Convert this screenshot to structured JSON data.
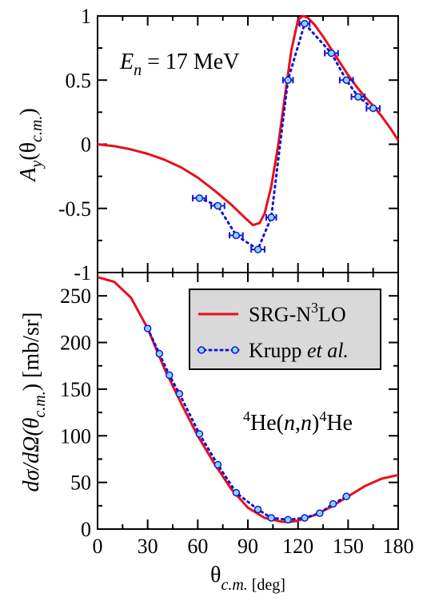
{
  "colors": {
    "theory": "#e8101a",
    "data_line": "#1414d8",
    "marker_fill": "#87d8f6",
    "marker_edge": "#1414d8",
    "legend_bg": "#d9d9d9"
  },
  "chart_data": [
    {
      "type": "line",
      "panel": "top",
      "xlim": [
        0,
        180
      ],
      "ylim": [
        -1,
        1
      ],
      "yticks": [
        -1,
        -0.5,
        0,
        0.5,
        1
      ],
      "ytick_labels": [
        "-1",
        "-0.5",
        "0",
        "0.5",
        "1"
      ],
      "ylabel": {
        "main": "A",
        "sub": "y",
        "paren_open": "(θ",
        "paren_sub": "c.m.",
        "paren_close": ")"
      },
      "annotation": {
        "main": "E",
        "sub": "n",
        "rest": " = 17 MeV"
      },
      "series": [
        {
          "name": "SRG-N3LO",
          "style": "solid",
          "x": [
            0,
            10,
            20,
            30,
            40,
            50,
            60,
            70,
            80,
            88,
            93,
            97,
            100,
            104,
            108,
            112,
            116,
            120,
            123,
            126,
            130,
            135,
            140,
            145,
            150,
            155,
            160,
            165,
            170,
            175,
            180
          ],
          "y": [
            0,
            -0.015,
            -0.04,
            -0.075,
            -0.12,
            -0.18,
            -0.26,
            -0.36,
            -0.47,
            -0.57,
            -0.63,
            -0.615,
            -0.54,
            -0.33,
            -0.02,
            0.36,
            0.73,
            0.97,
            1.0,
            0.985,
            0.93,
            0.84,
            0.74,
            0.64,
            0.54,
            0.45,
            0.37,
            0.3,
            0.22,
            0.13,
            0.03
          ]
        },
        {
          "name": "Krupp et al.",
          "style": "dotted-markers",
          "x": [
            61,
            72,
            83,
            96,
            104,
            114,
            124,
            140,
            149,
            156,
            165
          ],
          "y": [
            -0.42,
            -0.48,
            -0.71,
            -0.82,
            -0.57,
            0.5,
            0.94,
            0.71,
            0.5,
            0.37,
            0.28
          ],
          "xerr": [
            4,
            4,
            4,
            4,
            3,
            3,
            3,
            4,
            4,
            4,
            4
          ]
        }
      ]
    },
    {
      "type": "line",
      "panel": "bottom",
      "xlim": [
        0,
        180
      ],
      "ylim": [
        0,
        275
      ],
      "xticks": [
        0,
        30,
        60,
        90,
        120,
        150,
        180
      ],
      "xtick_labels": [
        "0",
        "30",
        "60",
        "90",
        "120",
        "150",
        "180"
      ],
      "yticks": [
        0,
        50,
        100,
        150,
        200,
        250
      ],
      "ytick_labels": [
        "0",
        "50",
        "100",
        "150",
        "200",
        "250"
      ],
      "xlabel": {
        "main": "θ",
        "sub": "c.m.",
        "unit": " [deg]"
      },
      "ylabel": {
        "main": "dσ/dΩ(θ",
        "sub": "c.m.",
        "rest": ") [mb/sr]"
      },
      "annotation": {
        "sup1": "4",
        "part1": "He(",
        "n1": "n",
        "comma": ",",
        "n2": "n",
        "part2": ")",
        "sup2": "4",
        "part3": "He"
      },
      "legend": {
        "position": "top-right",
        "entries": [
          {
            "main": "SRG-N",
            "sup": "3",
            "rest": "LO"
          },
          {
            "main": "Krupp ",
            "ital": "et al.",
            "rest": ""
          }
        ]
      },
      "series": [
        {
          "name": "SRG-N3LO",
          "style": "solid",
          "x": [
            0,
            10,
            20,
            30,
            40,
            50,
            60,
            70,
            80,
            90,
            100,
            110,
            115,
            120,
            130,
            140,
            150,
            160,
            170,
            180
          ],
          "y": [
            270,
            265,
            248,
            215,
            172,
            135,
            100,
            70,
            43,
            23,
            12,
            8,
            7.5,
            9,
            15,
            24,
            35,
            46,
            54,
            58
          ]
        },
        {
          "name": "Krupp et al.",
          "style": "dotted-markers",
          "x": [
            30,
            37,
            43,
            49,
            61,
            72,
            83,
            96,
            104,
            114,
            124,
            133,
            141,
            149
          ],
          "y": [
            215,
            188,
            165,
            145,
            102,
            69,
            39,
            21,
            12,
            10,
            12,
            17,
            27,
            35
          ]
        }
      ]
    }
  ]
}
